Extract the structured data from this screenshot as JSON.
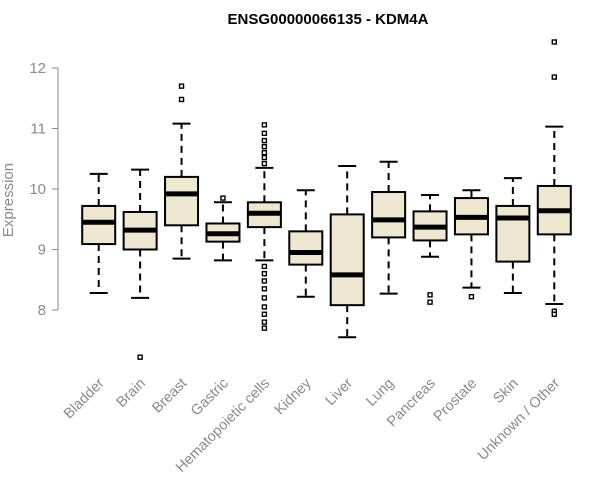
{
  "chart_data": {
    "type": "box",
    "title": "ENSG00000066135 - KDM4A",
    "xlabel": "",
    "ylabel": "Expression",
    "ylim": [
      7.0,
      12.6
    ],
    "yticks": [
      8,
      9,
      10,
      11,
      12
    ],
    "grid": false,
    "box_fill": "#efe8d1",
    "median_color": "#000000",
    "axis_color": "#8a8a8a",
    "categories": [
      "Bladder",
      "Brain",
      "Breast",
      "Gastric",
      "Hematopoietic cells",
      "Kidney",
      "Liver",
      "Lung",
      "Pancreas",
      "Prostate",
      "Skin",
      "Unknown / Other"
    ],
    "series": [
      {
        "values": [
          {
            "whisker_low": 8.28,
            "q1": 9.09,
            "median": 9.45,
            "q3": 9.72,
            "whisker_high": 10.25,
            "outliers": []
          },
          {
            "whisker_low": 8.2,
            "q1": 9.0,
            "median": 9.32,
            "q3": 9.62,
            "whisker_high": 10.32,
            "outliers": [
              7.22
            ]
          },
          {
            "whisker_low": 8.85,
            "q1": 9.4,
            "median": 9.92,
            "q3": 10.2,
            "whisker_high": 11.08,
            "outliers": [
              11.48,
              11.7
            ]
          },
          {
            "whisker_low": 8.82,
            "q1": 9.13,
            "median": 9.26,
            "q3": 9.43,
            "whisker_high": 9.78,
            "outliers": [
              9.85
            ]
          },
          {
            "whisker_low": 8.82,
            "q1": 9.37,
            "median": 9.6,
            "q3": 9.78,
            "whisker_high": 10.35,
            "outliers": [
              10.42,
              10.52,
              10.6,
              10.7,
              10.8,
              10.92,
              11.06,
              8.72,
              8.6,
              8.48,
              8.35,
              8.2,
              8.05,
              7.93,
              7.8,
              7.7
            ]
          },
          {
            "whisker_low": 8.22,
            "q1": 8.75,
            "median": 8.95,
            "q3": 9.3,
            "whisker_high": 9.98,
            "outliers": []
          },
          {
            "whisker_low": 7.55,
            "q1": 8.08,
            "median": 8.58,
            "q3": 9.58,
            "whisker_high": 10.38,
            "outliers": []
          },
          {
            "whisker_low": 8.27,
            "q1": 9.2,
            "median": 9.49,
            "q3": 9.95,
            "whisker_high": 10.45,
            "outliers": []
          },
          {
            "whisker_low": 8.88,
            "q1": 9.15,
            "median": 9.37,
            "q3": 9.63,
            "whisker_high": 9.9,
            "outliers": [
              8.25,
              8.13
            ]
          },
          {
            "whisker_low": 8.37,
            "q1": 9.25,
            "median": 9.53,
            "q3": 9.85,
            "whisker_high": 9.98,
            "outliers": [
              8.22
            ]
          },
          {
            "whisker_low": 8.28,
            "q1": 8.8,
            "median": 9.52,
            "q3": 9.72,
            "whisker_high": 10.18,
            "outliers": []
          },
          {
            "whisker_low": 8.1,
            "q1": 9.25,
            "median": 9.64,
            "q3": 10.05,
            "whisker_high": 11.03,
            "outliers": [
              11.85,
              12.43,
              7.98,
              7.93
            ]
          }
        ]
      }
    ]
  }
}
